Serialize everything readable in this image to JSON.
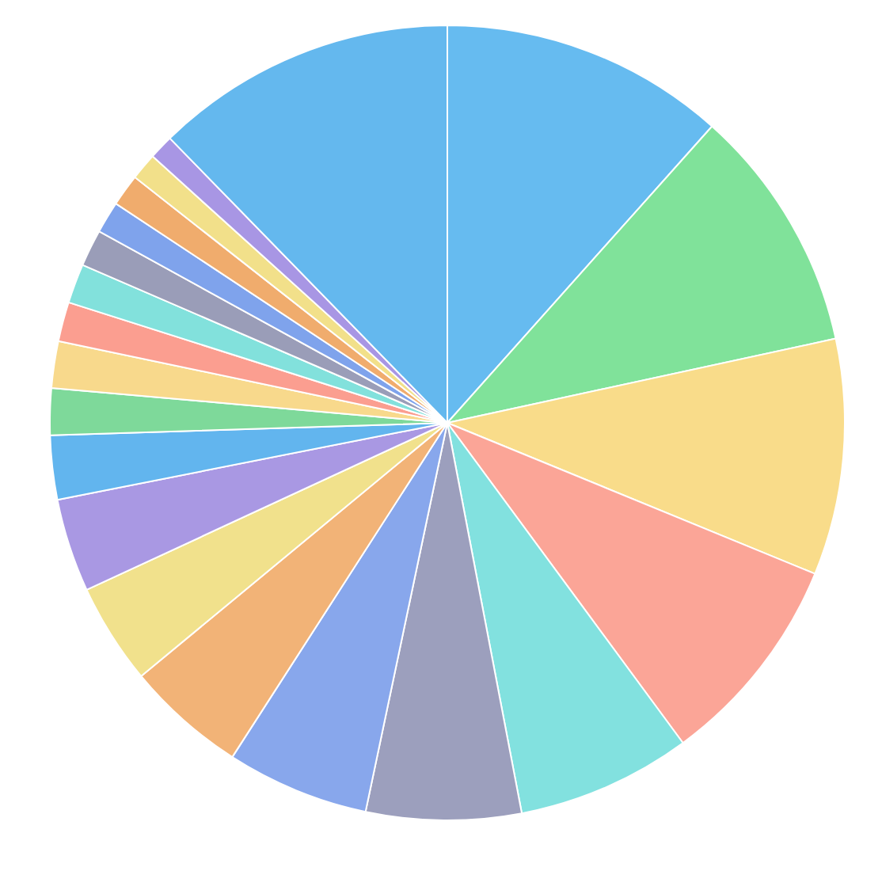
{
  "chart_data": {
    "type": "pie",
    "categories": [
      null,
      null,
      null,
      null,
      null,
      null,
      null,
      null,
      null,
      null,
      null,
      null,
      null,
      null,
      null,
      null,
      null,
      null,
      null,
      null,
      null
    ],
    "values": [
      11.6,
      10.0,
      9.6,
      8.7,
      7.1,
      6.3,
      5.8,
      4.9,
      4.1,
      3.8,
      2.6,
      1.9,
      1.9,
      1.6,
      1.6,
      1.5,
      1.3,
      1.3,
      1.1,
      1.0,
      12.3
    ],
    "colors": [
      "#66bbf0",
      "#80e29a",
      "#f9dc8a",
      "#fba597",
      "#82e1df",
      "#9c9fbd",
      "#88a7ec",
      "#f2b377",
      "#f1e18c",
      "#a998e3",
      "#62b5ee",
      "#7ed99a",
      "#f8d98c",
      "#fb9e90",
      "#82e1dc",
      "#9a9db8",
      "#7fa3ec",
      "#f0ac6d",
      "#f2e08a",
      "#a896e4",
      "#64b8ee"
    ],
    "legend": false
  }
}
